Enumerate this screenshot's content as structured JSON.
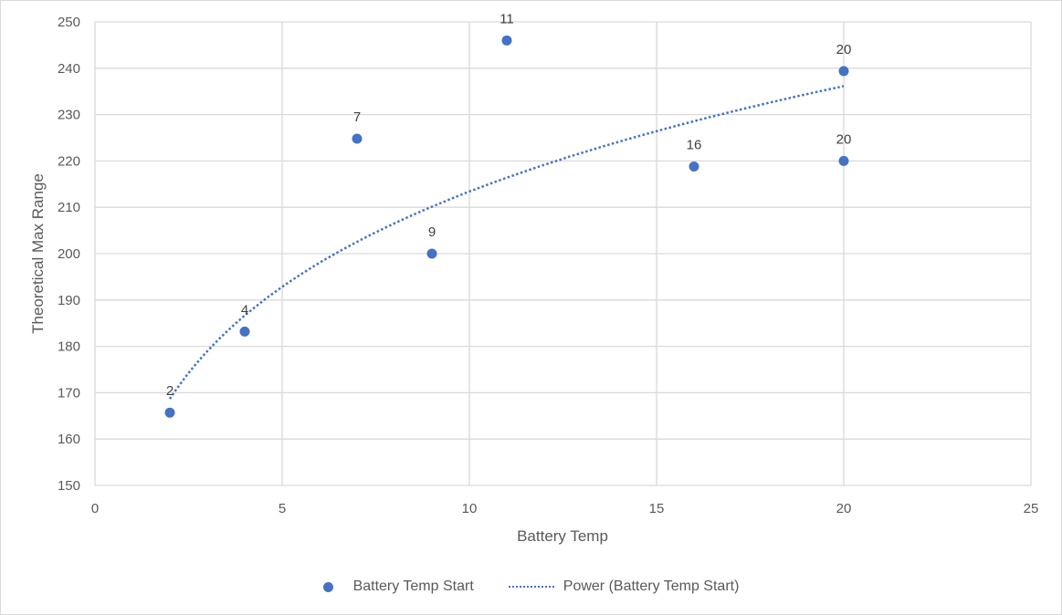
{
  "chart_data": {
    "type": "scatter",
    "xlabel": "Battery Temp",
    "ylabel": "Theoretical Max Range",
    "xlim": [
      0,
      25
    ],
    "ylim": [
      150,
      250
    ],
    "xticks": [
      0,
      5,
      10,
      15,
      20,
      25
    ],
    "yticks": [
      150,
      160,
      170,
      180,
      190,
      200,
      210,
      220,
      230,
      240,
      250
    ],
    "grid": true,
    "legend_position": "bottom",
    "series": [
      {
        "name": "Battery Temp Start",
        "color": "#4472c4",
        "points": [
          {
            "x": 2,
            "y": 165.7,
            "label": "2"
          },
          {
            "x": 4,
            "y": 183.2,
            "label": "4"
          },
          {
            "x": 7,
            "y": 224.8,
            "label": "7"
          },
          {
            "x": 9,
            "y": 200,
            "label": "9"
          },
          {
            "x": 11,
            "y": 246,
            "label": "11"
          },
          {
            "x": 16,
            "y": 218.8,
            "label": "16"
          },
          {
            "x": 20,
            "y": 239.4,
            "label": "20"
          },
          {
            "x": 20,
            "y": 220,
            "label": "20"
          }
        ]
      }
    ],
    "trendline": {
      "name": "Power (Battery Temp Start)",
      "type": "power",
      "color": "#4472c4",
      "style": "dotted",
      "x_range": [
        2,
        20
      ],
      "coefficient": 152.4,
      "exponent": 0.1462
    }
  }
}
